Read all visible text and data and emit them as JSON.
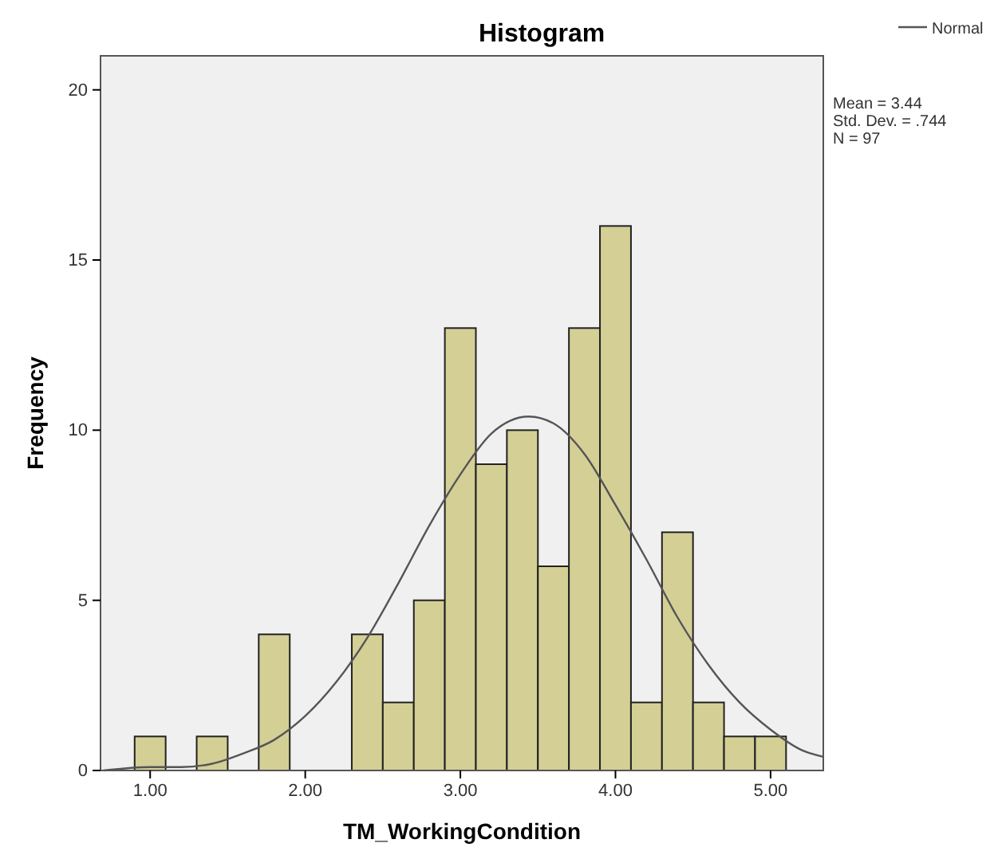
{
  "chart_data": {
    "type": "histogram",
    "title": "Histogram",
    "xlabel": "TM_WorkingCondition",
    "ylabel": "Frequency",
    "bins": [
      0.9,
      1.1,
      1.3,
      1.5,
      1.7,
      1.9,
      2.1,
      2.3,
      2.5,
      2.7,
      2.9,
      3.1,
      3.3,
      3.5,
      3.7,
      3.9,
      4.1,
      4.3,
      4.5,
      4.7,
      4.9,
      5.1
    ],
    "series": [
      {
        "color": "#d4cf95",
        "values": [
          1,
          0,
          1,
          0,
          4,
          0,
          0,
          4,
          2,
          5,
          13,
          9,
          10,
          6,
          13,
          16,
          2,
          7,
          2,
          1,
          1
        ]
      },
      {
        "type": "line",
        "name": "Normal",
        "color": "#555555",
        "x": [
          0.7,
          1.0,
          1.2,
          1.4,
          1.6,
          1.8,
          2.0,
          2.2,
          2.4,
          2.6,
          2.8,
          3.0,
          3.2,
          3.44,
          3.6,
          3.8,
          4.0,
          4.2,
          4.4,
          4.6,
          4.8,
          5.0,
          5.2,
          5.34
        ],
        "values": [
          0.0,
          0.1,
          0.1,
          0.2,
          0.5,
          0.9,
          1.6,
          2.6,
          3.9,
          5.5,
          7.2,
          8.7,
          9.9,
          10.4,
          10.2,
          9.3,
          7.8,
          6.2,
          4.5,
          3.1,
          2.0,
          1.2,
          0.6,
          0.4
        ]
      }
    ],
    "xlim": [
      0.68,
      5.34
    ],
    "xticks": [
      {
        "value": 1,
        "label": "1.00"
      },
      {
        "value": 2,
        "label": "2.00"
      },
      {
        "value": 3,
        "label": "3.00"
      },
      {
        "value": 4,
        "label": "4.00"
      },
      {
        "value": 5,
        "label": "5.00"
      }
    ],
    "ylim": [
      0,
      21
    ],
    "yticks": [
      0,
      5,
      10,
      15,
      20
    ],
    "grid": false,
    "legend": "top right",
    "marker": "none",
    "line_style": "solid",
    "annotations": [
      "Mean = 3.44",
      "Std. Dev. = .744",
      "N = 97"
    ]
  }
}
